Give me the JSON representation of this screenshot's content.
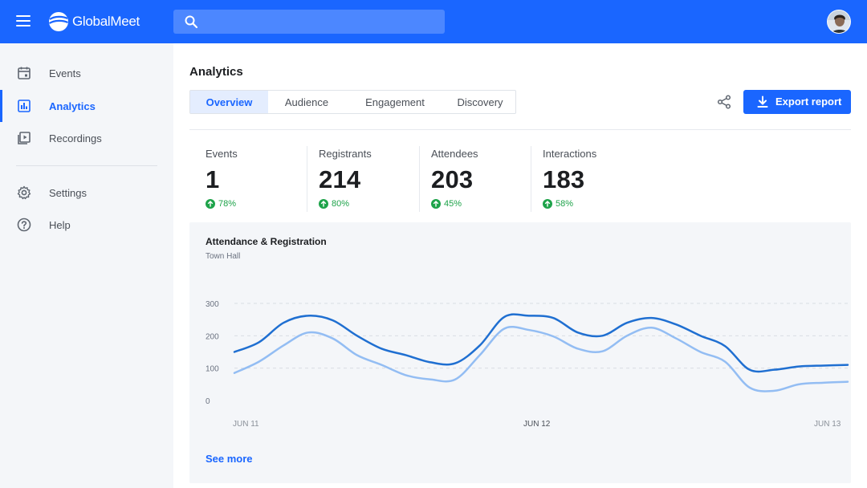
{
  "app": {
    "brand": "GlobalMeet",
    "search_placeholder": "",
    "accent": "#1a66ff"
  },
  "sidebar": {
    "items": [
      {
        "label": "Events",
        "icon": "calendar-icon",
        "active": false
      },
      {
        "label": "Analytics",
        "icon": "bar-chart-icon",
        "active": true
      },
      {
        "label": "Recordings",
        "icon": "recordings-icon",
        "active": false
      },
      {
        "label": "Settings",
        "icon": "gear-icon",
        "active": false
      },
      {
        "label": "Help",
        "icon": "help-icon",
        "active": false
      }
    ]
  },
  "main": {
    "title": "Analytics",
    "tabs": [
      {
        "label": "Overview",
        "active": true
      },
      {
        "label": "Audience",
        "active": false
      },
      {
        "label": "Engagement",
        "active": false
      },
      {
        "label": "Discovery",
        "active": false
      }
    ],
    "export_label": "Export report",
    "stats": [
      {
        "label": "Events",
        "value": "1",
        "delta": "78%"
      },
      {
        "label": "Registrants",
        "value": "214",
        "delta": "80%"
      },
      {
        "label": "Attendees",
        "value": "203",
        "delta": "45%"
      },
      {
        "label": "Interactions",
        "value": "183",
        "delta": "58%"
      }
    ],
    "see_more": "See more"
  },
  "chart_data": {
    "type": "line",
    "title": "Attendance & Registration",
    "subtitle": "Town Hall",
    "xlabel": "",
    "ylabel": "",
    "ylim": [
      0,
      300
    ],
    "yticks": [
      "300",
      "200",
      "100",
      "0"
    ],
    "xticks": [
      "JUN 11",
      "JUN 12",
      "JUN 13"
    ],
    "grid": true,
    "colors": [
      "#1f6fd1",
      "#93bdf3"
    ],
    "x": [
      0,
      0.04,
      0.08,
      0.12,
      0.16,
      0.2,
      0.24,
      0.28,
      0.32,
      0.36,
      0.4,
      0.44,
      0.48,
      0.52,
      0.56,
      0.6,
      0.64,
      0.68,
      0.72,
      0.76,
      0.8,
      0.84,
      0.88,
      0.92,
      0.96,
      1.0
    ],
    "series": [
      {
        "values": [
          150,
          180,
          240,
          262,
          248,
          200,
          160,
          140,
          118,
          115,
          170,
          258,
          262,
          255,
          210,
          200,
          240,
          255,
          235,
          200,
          168,
          95,
          95,
          105,
          108,
          110
        ]
      },
      {
        "values": [
          85,
          120,
          170,
          210,
          192,
          140,
          110,
          78,
          65,
          65,
          140,
          222,
          218,
          198,
          160,
          152,
          200,
          225,
          192,
          150,
          120,
          40,
          30,
          50,
          55,
          58
        ]
      }
    ]
  }
}
